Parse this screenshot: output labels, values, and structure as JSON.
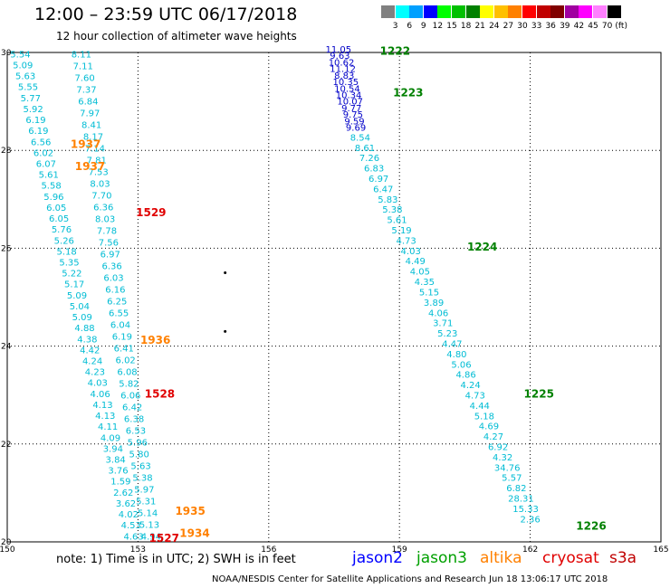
{
  "header": {
    "title": "12:00 – 23:59 UTC 06/17/2018",
    "subtitle": "12 hour collection of altimeter wave heights"
  },
  "legend": {
    "unit": "(ft)",
    "bins": [
      {
        "label": "3",
        "color": "#808080"
      },
      {
        "label": "6",
        "color": "#00ffff"
      },
      {
        "label": "9",
        "color": "#00a0ff"
      },
      {
        "label": "12",
        "color": "#0000ff"
      },
      {
        "label": "15",
        "color": "#00ff00"
      },
      {
        "label": "18",
        "color": "#00c000"
      },
      {
        "label": "21",
        "color": "#008000"
      },
      {
        "label": "24",
        "color": "#ffff00"
      },
      {
        "label": "27",
        "color": "#ffc000"
      },
      {
        "label": "30",
        "color": "#ff8000"
      },
      {
        "label": "33",
        "color": "#ff0000"
      },
      {
        "label": "36",
        "color": "#c00000"
      },
      {
        "label": "39",
        "color": "#800000"
      },
      {
        "label": "42",
        "color": "#a000a0"
      },
      {
        "label": "45",
        "color": "#ff00ff"
      },
      {
        "label": "70",
        "color": "#ff80ff"
      },
      {
        "label": "",
        "color": "#000000"
      }
    ]
  },
  "chart_data": {
    "type": "scatter",
    "xlim": [
      150,
      165
    ],
    "ylim": [
      20,
      30
    ],
    "x_ticks": [
      "150",
      "153",
      "156",
      "159",
      "162",
      "165"
    ],
    "y_ticks": [
      "20",
      "22",
      "24",
      "26",
      "28",
      "30"
    ],
    "grid": true,
    "tracks": [
      {
        "name": "left-a",
        "color": "#00bcd4",
        "start": [
          150.3,
          29.9
        ],
        "end": [
          152.9,
          20.05
        ],
        "values": [
          "5.54",
          "5.09",
          "5.63",
          "5.55",
          "5.77",
          "5.92",
          "6.19",
          "6.19",
          "6.56",
          "6.02",
          "6.07",
          "5.61",
          "5.58",
          "5.96",
          "6.05",
          "6.05",
          "5.76",
          "5.26",
          "5.18",
          "5.35",
          "5.22",
          "5.17",
          "5.09",
          "5.04",
          "5.09",
          "4.88",
          "4.38",
          "4.42",
          "4.24",
          "4.23",
          "4.03",
          "4.06",
          "4.13",
          "4.13",
          "4.11",
          "4.09",
          "3.94",
          "3.84",
          "3.76",
          "1.59",
          "2.62",
          "3.62",
          "4.02",
          "4.53",
          "4.63"
        ]
      },
      {
        "name": "left-b",
        "color": "#00bcd4",
        "start": [
          151.7,
          29.9
        ],
        "end": [
          153.3,
          20.05
        ],
        "values": [
          "8.11",
          "7.11",
          "7.60",
          "7.37",
          "6.84",
          "7.97",
          "8.41",
          "8.17",
          "7.14",
          "7.81",
          "7.53",
          "8.03",
          "7.70",
          "6.36",
          "8.03",
          "7.78",
          "7.56",
          "6.97",
          "6.36",
          "6.03",
          "6.16",
          "6.25",
          "6.55",
          "6.04",
          "6.19",
          "6.41",
          "6.02",
          "6.08",
          "5.82",
          "6.06",
          "6.42",
          "6.38",
          "6.53",
          "5.96",
          "5.80",
          "5.63",
          "5.38",
          "5.97",
          "5.31",
          "5.14",
          "5.13",
          "4.94"
        ]
      },
      {
        "name": "right-diag",
        "color": "#00bcd4",
        "start": [
          158.1,
          28.2
        ],
        "end": [
          162.0,
          20.4
        ],
        "values": [
          "8.54",
          "8.61",
          "7.26",
          "6.83",
          "6.97",
          "6.47",
          "5.83",
          "5.38",
          "5.61",
          "5.19",
          "4.73",
          "4.03",
          "4.49",
          "4.05",
          "4.35",
          "5.15",
          "3.89",
          "4.06",
          "3.71",
          "5.23",
          "4.47",
          "4.80",
          "5.06",
          "4.86",
          "4.24",
          "4.73",
          "4.44",
          "5.18",
          "4.69",
          "4.27",
          "6.92",
          "4.32",
          "34.76",
          "5.57",
          "6.82",
          "28.31",
          "15.33",
          "2.36"
        ]
      },
      {
        "name": "right-top",
        "color": "#0000c8",
        "start": [
          157.6,
          30.0
        ],
        "end": [
          158.0,
          28.4
        ],
        "values": [
          "11.05",
          "9.63",
          "10.62",
          "11.12",
          "8.83",
          "10.35",
          "10.54",
          "10.34",
          "10.07",
          "9.77",
          "9.75",
          "9.59",
          "9.69"
        ]
      }
    ],
    "annotations": [
      {
        "text": "1222",
        "x": 158.9,
        "y": 29.95,
        "color": "#008000"
      },
      {
        "text": "1223",
        "x": 159.2,
        "y": 29.1,
        "color": "#008000"
      },
      {
        "text": "1224",
        "x": 160.9,
        "y": 25.95,
        "color": "#008000"
      },
      {
        "text": "1225",
        "x": 162.2,
        "y": 22.95,
        "color": "#008000"
      },
      {
        "text": "1226",
        "x": 163.4,
        "y": 20.25,
        "color": "#008000"
      },
      {
        "text": "1937",
        "x": 151.8,
        "y": 28.05,
        "color": "#ff8000"
      },
      {
        "text": "1937",
        "x": 151.9,
        "y": 27.6,
        "color": "#ff8000"
      },
      {
        "text": "1936",
        "x": 153.4,
        "y": 24.05,
        "color": "#ff8000"
      },
      {
        "text": "1935",
        "x": 154.2,
        "y": 20.55,
        "color": "#ff8000"
      },
      {
        "text": "1934",
        "x": 154.3,
        "y": 20.1,
        "color": "#ff8000"
      },
      {
        "text": "1529",
        "x": 153.3,
        "y": 26.65,
        "color": "#e00000"
      },
      {
        "text": "1528",
        "x": 153.5,
        "y": 22.95,
        "color": "#e00000"
      },
      {
        "text": "1527",
        "x": 153.6,
        "y": 20.0,
        "color": "#e00000"
      }
    ],
    "markers": [
      {
        "x": 155.0,
        "y": 25.5
      },
      {
        "x": 155.0,
        "y": 24.3
      }
    ]
  },
  "footer": {
    "note": "note: 1) Time is in UTC; 2) SWH is in feet",
    "satellites": [
      {
        "name": "jason2",
        "color": "#0000ff"
      },
      {
        "name": "jason3",
        "color": "#00a000"
      },
      {
        "name": "altika",
        "color": "#ff8000"
      },
      {
        "name": "cryosat",
        "color": "#e00000"
      },
      {
        "name": "s3a",
        "color": "#c00000"
      }
    ],
    "credit": "NOAA/NESDIS Center for Satellite Applications and Research     Jun 18 13:06:17 UTC 2018"
  }
}
